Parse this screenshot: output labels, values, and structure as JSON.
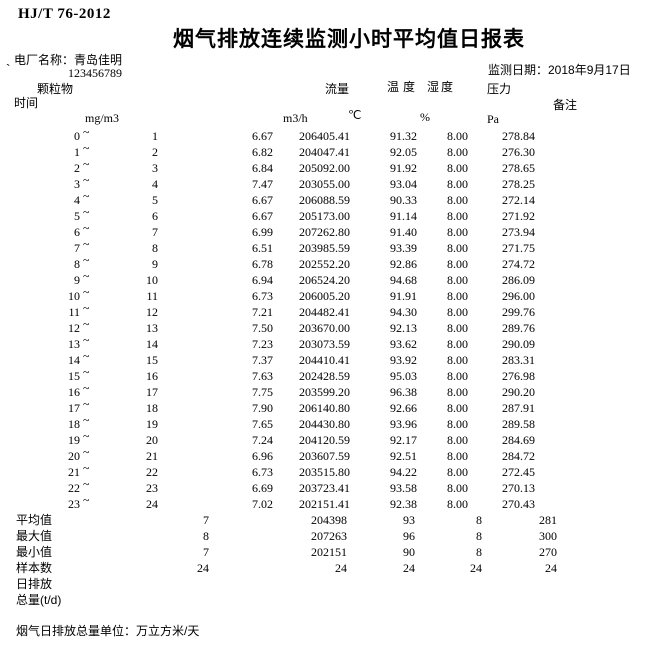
{
  "page": {
    "standard": "HJ/T 76-2012",
    "title": "烟气排放连续监测小时平均值日报表",
    "plant_name_label": "电厂名称：青岛佳明",
    "stray_mark": "`",
    "plant_code": "123456789",
    "monitor_date_label": "监测日期：2018年9月17日"
  },
  "table": {
    "headers": {
      "time": "时间",
      "pm": "颗粒物",
      "flow": "流量",
      "temperature": "温度",
      "humidity": "湿度",
      "pressure": "压力",
      "remark": "备注"
    },
    "units": {
      "pm": "mg/m3",
      "flow": "m3/h",
      "temperature": "℃",
      "humidity": "%",
      "pressure": "Pa"
    },
    "tilde": "~",
    "rows": [
      {
        "start": "0",
        "end": "1",
        "pm": "6.67",
        "flow": "206405.41",
        "temperature": "91.32",
        "humidity": "8.00",
        "pressure": "278.84"
      },
      {
        "start": "1",
        "end": "2",
        "pm": "6.82",
        "flow": "204047.41",
        "temperature": "92.05",
        "humidity": "8.00",
        "pressure": "276.30"
      },
      {
        "start": "2",
        "end": "3",
        "pm": "6.84",
        "flow": "205092.00",
        "temperature": "91.92",
        "humidity": "8.00",
        "pressure": "278.65"
      },
      {
        "start": "3",
        "end": "4",
        "pm": "7.47",
        "flow": "203055.00",
        "temperature": "93.04",
        "humidity": "8.00",
        "pressure": "278.25"
      },
      {
        "start": "4",
        "end": "5",
        "pm": "6.67",
        "flow": "206088.59",
        "temperature": "90.33",
        "humidity": "8.00",
        "pressure": "272.14"
      },
      {
        "start": "5",
        "end": "6",
        "pm": "6.67",
        "flow": "205173.00",
        "temperature": "91.14",
        "humidity": "8.00",
        "pressure": "271.92"
      },
      {
        "start": "6",
        "end": "7",
        "pm": "6.99",
        "flow": "207262.80",
        "temperature": "91.40",
        "humidity": "8.00",
        "pressure": "273.94"
      },
      {
        "start": "7",
        "end": "8",
        "pm": "6.51",
        "flow": "203985.59",
        "temperature": "93.39",
        "humidity": "8.00",
        "pressure": "271.75"
      },
      {
        "start": "8",
        "end": "9",
        "pm": "6.78",
        "flow": "202552.20",
        "temperature": "92.86",
        "humidity": "8.00",
        "pressure": "274.72"
      },
      {
        "start": "9",
        "end": "10",
        "pm": "6.94",
        "flow": "206524.20",
        "temperature": "94.68",
        "humidity": "8.00",
        "pressure": "286.09"
      },
      {
        "start": "10",
        "end": "11",
        "pm": "6.73",
        "flow": "206005.20",
        "temperature": "91.91",
        "humidity": "8.00",
        "pressure": "296.00"
      },
      {
        "start": "11",
        "end": "12",
        "pm": "7.21",
        "flow": "204482.41",
        "temperature": "94.30",
        "humidity": "8.00",
        "pressure": "299.76"
      },
      {
        "start": "12",
        "end": "13",
        "pm": "7.50",
        "flow": "203670.00",
        "temperature": "92.13",
        "humidity": "8.00",
        "pressure": "289.76"
      },
      {
        "start": "13",
        "end": "14",
        "pm": "7.23",
        "flow": "203073.59",
        "temperature": "93.62",
        "humidity": "8.00",
        "pressure": "290.09"
      },
      {
        "start": "14",
        "end": "15",
        "pm": "7.37",
        "flow": "204410.41",
        "temperature": "93.92",
        "humidity": "8.00",
        "pressure": "283.31"
      },
      {
        "start": "15",
        "end": "16",
        "pm": "7.63",
        "flow": "202428.59",
        "temperature": "95.03",
        "humidity": "8.00",
        "pressure": "276.98"
      },
      {
        "start": "16",
        "end": "17",
        "pm": "7.75",
        "flow": "203599.20",
        "temperature": "96.38",
        "humidity": "8.00",
        "pressure": "290.20"
      },
      {
        "start": "17",
        "end": "18",
        "pm": "7.90",
        "flow": "206140.80",
        "temperature": "92.66",
        "humidity": "8.00",
        "pressure": "287.91"
      },
      {
        "start": "18",
        "end": "19",
        "pm": "7.65",
        "flow": "204430.80",
        "temperature": "93.96",
        "humidity": "8.00",
        "pressure": "289.58"
      },
      {
        "start": "19",
        "end": "20",
        "pm": "7.24",
        "flow": "204120.59",
        "temperature": "92.17",
        "humidity": "8.00",
        "pressure": "284.69"
      },
      {
        "start": "20",
        "end": "21",
        "pm": "6.96",
        "flow": "203607.59",
        "temperature": "92.51",
        "humidity": "8.00",
        "pressure": "284.72"
      },
      {
        "start": "21",
        "end": "22",
        "pm": "6.73",
        "flow": "203515.80",
        "temperature": "94.22",
        "humidity": "8.00",
        "pressure": "272.45"
      },
      {
        "start": "22",
        "end": "23",
        "pm": "6.69",
        "flow": "203723.41",
        "temperature": "93.58",
        "humidity": "8.00",
        "pressure": "270.13"
      },
      {
        "start": "23",
        "end": "24",
        "pm": "7.02",
        "flow": "202151.41",
        "temperature": "92.38",
        "humidity": "8.00",
        "pressure": "270.43"
      }
    ],
    "summary": [
      {
        "label": "平均值",
        "values": [
          "7",
          "204398",
          "93",
          "8",
          "281"
        ]
      },
      {
        "label": "最大值",
        "values": [
          "8",
          "207263",
          "96",
          "8",
          "300"
        ]
      },
      {
        "label": "最小值",
        "values": [
          "7",
          "202151",
          "90",
          "8",
          "270"
        ]
      },
      {
        "label": "样本数",
        "values": [
          "24",
          "24",
          "24",
          "24",
          "24"
        ]
      },
      {
        "label": "日排放",
        "values": []
      },
      {
        "label": "总量(t/d)",
        "values": []
      }
    ]
  },
  "footer": {
    "note": "烟气日排放总量单位：万立方米/天"
  }
}
